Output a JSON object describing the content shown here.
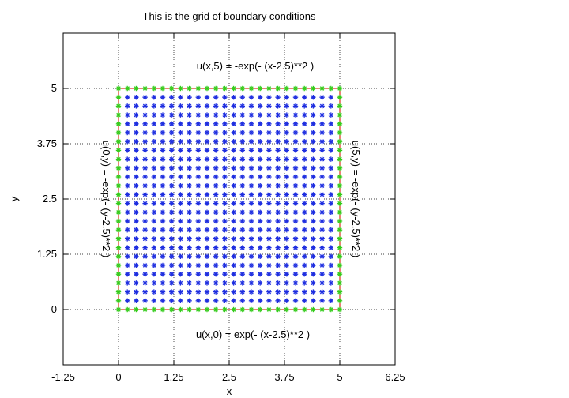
{
  "chart_data": {
    "type": "scatter",
    "title": "This is the grid of boundary conditions",
    "xlabel": "x",
    "ylabel": "y",
    "xlim": [
      -1.25,
      6.25
    ],
    "ylim": [
      -1.25,
      6.25
    ],
    "x_ticks": [
      "-1.25",
      "0",
      "1.25",
      "2.5",
      "3.75",
      "5",
      "6.25"
    ],
    "y_ticks": [
      "0",
      "1.25",
      "2.5",
      "3.75",
      "5"
    ],
    "x_tick_values": [
      -1.25,
      0,
      1.25,
      2.5,
      3.75,
      5,
      6.25
    ],
    "y_tick_values": [
      0,
      1.25,
      2.5,
      3.75,
      5
    ],
    "grid": true,
    "interior_grid": {
      "start": 0.2,
      "end": 4.8,
      "step": 0.2,
      "color": "#1f2fe0",
      "marker": "asterisk"
    },
    "boundary_grid": {
      "start": 0,
      "end": 5,
      "step": 0.2,
      "color": "#33cc1a",
      "marker": "asterisk"
    },
    "boundary_line_color": "#e0301a",
    "annotations": {
      "top": "u(x,5) = -exp(- (x-2.5)**2 )",
      "bottom": "u(x,0) = exp(- (x-2.5)**2 )",
      "left": "u(0,y) = -exp(- (y-2.5)**2 )",
      "right": "u(5,y) = -exp(- (y-2.5)**2 )"
    }
  }
}
